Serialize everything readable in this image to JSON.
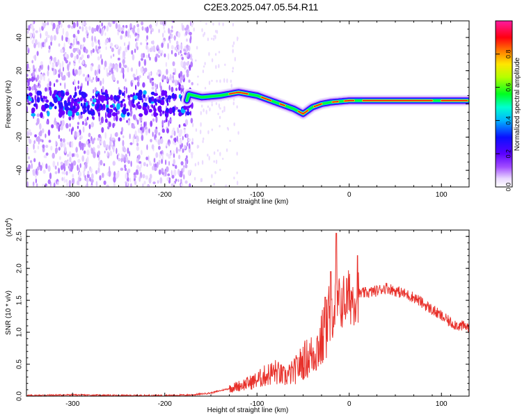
{
  "title": "C2E3.2025.047.05.54.R11",
  "chart_data": [
    {
      "type": "heatmap",
      "title": "",
      "xlabel": "Height of straight line (km)",
      "ylabel": "Frequency (Hz)",
      "xlim": [
        -350,
        130
      ],
      "ylim": [
        -50,
        50
      ],
      "x_ticks": [
        "-300",
        "-200",
        "-100",
        "0",
        "100"
      ],
      "y_ticks": [
        "-40",
        "-20",
        "0",
        "20",
        "40"
      ],
      "colorbar": {
        "label": "Normalized spectral amplitude",
        "range": [
          0,
          1
        ],
        "ticks": [
          "0.0",
          "0.2",
          "0.4",
          "0.6",
          "0.8"
        ],
        "colormap": "rainbow (white-violet-blue-cyan-green-yellow-red-magenta)"
      },
      "ridge": {
        "x": [
          -175,
          -160,
          -140,
          -120,
          -100,
          -80,
          -60,
          -50,
          -40,
          -30,
          -20,
          0,
          20,
          40,
          60,
          80,
          100,
          130
        ],
        "y": [
          6,
          4,
          5,
          7,
          5,
          1,
          -3,
          -6,
          -2,
          0,
          1,
          2,
          2,
          2,
          2,
          2,
          2,
          2
        ]
      }
    },
    {
      "type": "line",
      "title": "",
      "xlabel": "Height of straight line (km)",
      "ylabel": "SNR (10 * v/v)",
      "multiplier": "(x10",
      "multiplier_exp": "4",
      "multiplier_close": ")",
      "xlim": [
        -350,
        130
      ],
      "ylim": [
        0,
        2.6
      ],
      "x_ticks": [
        "-300",
        "-200",
        "-100",
        "0",
        "100"
      ],
      "y_ticks": [
        "0.0",
        "0.5",
        "1.0",
        "1.5",
        "2.0",
        "2.5"
      ],
      "line_color": "#e8302a",
      "series": [
        {
          "x": [
            -350,
            -300,
            -250,
            -200,
            -170,
            -150,
            -130,
            -110,
            -100,
            -90,
            -80,
            -70,
            -60,
            -50,
            -40,
            -30,
            -25,
            -20,
            -15,
            -10,
            -5,
            0,
            5,
            10,
            20,
            30,
            40,
            50,
            60,
            70,
            80,
            90,
            100,
            110,
            120,
            130
          ],
          "values": [
            0.01,
            0.02,
            0.01,
            0.01,
            0.02,
            0.05,
            0.12,
            0.2,
            0.25,
            0.33,
            0.38,
            0.3,
            0.38,
            0.55,
            0.65,
            0.85,
            1.1,
            1.3,
            1.4,
            1.45,
            1.5,
            1.55,
            1.55,
            1.6,
            1.62,
            1.65,
            1.7,
            1.65,
            1.6,
            1.55,
            1.45,
            1.35,
            1.25,
            1.15,
            1.1,
            1.08
          ]
        }
      ],
      "spikes": [
        {
          "x": -14,
          "y": 2.55
        },
        {
          "x": 9,
          "y": 2.2
        },
        {
          "x": -20,
          "y": 1.95
        },
        {
          "x": -26,
          "y": 1.55
        }
      ]
    }
  ]
}
